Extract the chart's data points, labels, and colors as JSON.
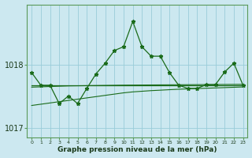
{
  "title": "Graphe pression niveau de la mer (hPa)",
  "background_color": "#cce8f0",
  "grid_color": "#99ccd9",
  "line_color": "#1a6b1a",
  "x_labels": [
    "0",
    "1",
    "2",
    "3",
    "4",
    "5",
    "6",
    "7",
    "8",
    "9",
    "10",
    "11",
    "12",
    "13",
    "14",
    "15",
    "16",
    "17",
    "18",
    "19",
    "20",
    "21",
    "22",
    "23"
  ],
  "x_values": [
    0,
    1,
    2,
    3,
    4,
    5,
    6,
    7,
    8,
    9,
    10,
    11,
    12,
    13,
    14,
    15,
    16,
    17,
    18,
    19,
    20,
    21,
    22,
    23
  ],
  "y_main": [
    1017.87,
    1017.67,
    1017.67,
    1017.38,
    1017.5,
    1017.38,
    1017.62,
    1017.85,
    1018.02,
    1018.22,
    1018.28,
    1018.68,
    1018.28,
    1018.13,
    1018.13,
    1017.87,
    1017.67,
    1017.62,
    1017.62,
    1017.68,
    1017.68,
    1017.88,
    1018.02,
    1017.67
  ],
  "y_flat": [
    1017.67,
    1017.67,
    1017.67,
    1017.67,
    1017.67,
    1017.67,
    1017.67,
    1017.67,
    1017.67,
    1017.67,
    1017.67,
    1017.67,
    1017.67,
    1017.67,
    1017.67,
    1017.67,
    1017.67,
    1017.67,
    1017.67,
    1017.67,
    1017.67,
    1017.67,
    1017.67,
    1017.67
  ],
  "y_trend_upper": [
    1017.64,
    1017.645,
    1017.65,
    1017.655,
    1017.66,
    1017.662,
    1017.664,
    1017.666,
    1017.668,
    1017.67,
    1017.672,
    1017.673,
    1017.674,
    1017.675,
    1017.676,
    1017.677,
    1017.678,
    1017.679,
    1017.68,
    1017.681,
    1017.682,
    1017.683,
    1017.684,
    1017.685
  ],
  "y_trend_lower": [
    1017.35,
    1017.37,
    1017.39,
    1017.41,
    1017.43,
    1017.45,
    1017.47,
    1017.49,
    1017.51,
    1017.53,
    1017.55,
    1017.565,
    1017.575,
    1017.585,
    1017.592,
    1017.6,
    1017.607,
    1017.613,
    1017.618,
    1017.623,
    1017.628,
    1017.633,
    1017.638,
    1017.643
  ],
  "yticks": [
    1017.0,
    1018.0
  ],
  "ylim": [
    1016.85,
    1018.95
  ],
  "xlim": [
    -0.5,
    23.5
  ]
}
